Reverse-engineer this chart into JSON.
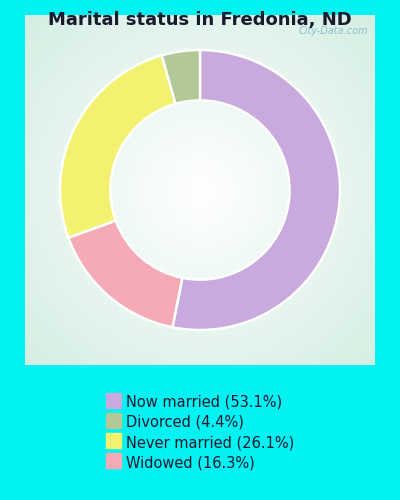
{
  "title": "Marital status in Fredonia, ND",
  "title_fontsize": 13,
  "background_color": "#00f2f2",
  "chart_bg_color": "#e0f2e8",
  "slices": [
    {
      "label": "Now married (53.1%)",
      "value": 53.1,
      "color": "#c9aadf"
    },
    {
      "label": "Widowed (16.3%)",
      "value": 16.3,
      "color": "#f5aab5"
    },
    {
      "label": "Never married (26.1%)",
      "value": 26.1,
      "color": "#f2f270"
    },
    {
      "label": "Divorced (4.4%)",
      "value": 4.4,
      "color": "#b2c896"
    }
  ],
  "legend_order": [
    0,
    3,
    2,
    1
  ],
  "legend_labels": [
    "Now married (53.1%)",
    "Divorced (4.4%)",
    "Never married (26.1%)",
    "Widowed (16.3%)"
  ],
  "legend_colors": [
    "#c9aadf",
    "#b2c896",
    "#f2f270",
    "#f5aab5"
  ],
  "donut_width": 0.36,
  "legend_fontsize": 10.5,
  "watermark": "City-Data.com",
  "startangle": 90
}
